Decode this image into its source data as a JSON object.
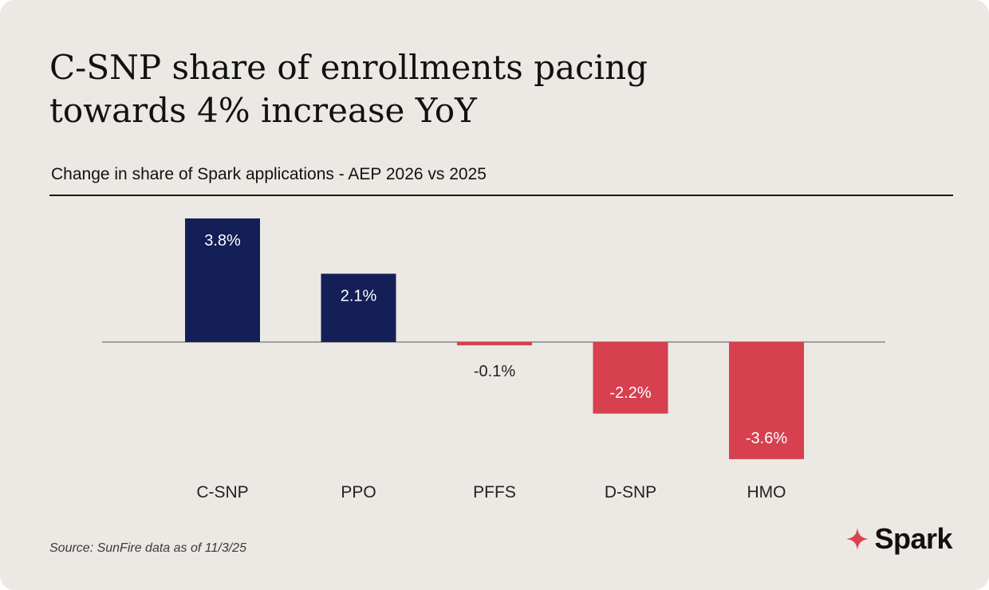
{
  "title": "C-SNP share of enrollments pacing towards 4% increase YoY",
  "subtitle": "Change in share of Spark applications - AEP 2026 vs 2025",
  "source": "Source: SunFire data as of 11/3/25",
  "brand": {
    "name": "Spark",
    "icon": "sparkle-star-icon",
    "icon_color": "#d9434f"
  },
  "colors": {
    "positive": "#141f57",
    "negative": "#d6404f",
    "background": "#ece9e4"
  },
  "chart_data": {
    "type": "bar",
    "title": "C-SNP share of enrollments pacing towards 4% increase YoY",
    "subtitle": "Change in share of Spark applications - AEP 2026 vs 2025",
    "categories": [
      "C-SNP",
      "PPO",
      "PFFS",
      "D-SNP",
      "HMO"
    ],
    "values": [
      3.8,
      2.1,
      -0.1,
      -2.2,
      -3.6
    ],
    "labels": [
      "3.8%",
      "2.1%",
      "-0.1%",
      "-2.2%",
      "-3.6%"
    ],
    "ylim": [
      -3.6,
      3.8
    ],
    "xlabel": "",
    "ylabel": "",
    "grid": false,
    "legend": "none"
  }
}
